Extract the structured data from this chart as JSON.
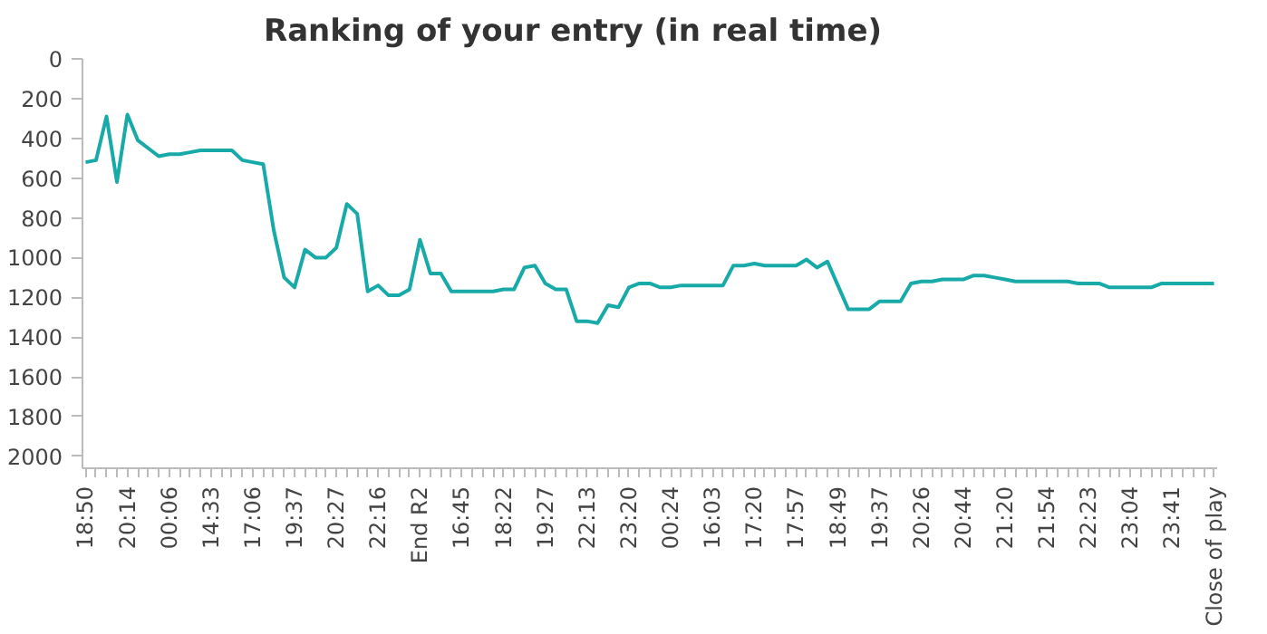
{
  "chart_data": {
    "type": "line",
    "title": "Ranking of your entry (in real time)",
    "categories": [
      "18:50",
      null,
      null,
      null,
      "20:14",
      null,
      null,
      null,
      "00:06",
      null,
      null,
      null,
      "14:33",
      null,
      null,
      null,
      "17:06",
      null,
      null,
      null,
      "19:37",
      null,
      null,
      null,
      "20:27",
      null,
      null,
      null,
      "22:16",
      null,
      null,
      null,
      "End R2",
      null,
      null,
      null,
      "16:45",
      null,
      null,
      null,
      "18:22",
      null,
      null,
      null,
      "19:27",
      null,
      null,
      null,
      "22:13",
      null,
      null,
      null,
      "23:20",
      null,
      null,
      null,
      "00:24",
      null,
      null,
      null,
      "16:03",
      null,
      null,
      null,
      "17:20",
      null,
      null,
      null,
      "17:57",
      null,
      null,
      null,
      "18:49",
      null,
      null,
      null,
      "19:37",
      null,
      null,
      null,
      "20:26",
      null,
      null,
      null,
      "20:44",
      null,
      null,
      null,
      "21:20",
      null,
      null,
      null,
      "21:54",
      null,
      null,
      null,
      "22:23",
      null,
      null,
      null,
      "23:04",
      null,
      null,
      null,
      "23:41",
      null,
      null,
      null,
      "Close of play"
    ],
    "series": [
      {
        "color": "#17aaa8",
        "values": [
          520,
          510,
          290,
          620,
          280,
          410,
          450,
          490,
          480,
          480,
          470,
          460,
          460,
          460,
          460,
          510,
          520,
          530,
          860,
          1100,
          1150,
          960,
          1000,
          1000,
          950,
          730,
          780,
          1170,
          1140,
          1190,
          1190,
          1160,
          910,
          1080,
          1080,
          1170,
          1170,
          1170,
          1170,
          1170,
          1160,
          1160,
          1050,
          1040,
          1130,
          1160,
          1160,
          1320,
          1320,
          1330,
          1240,
          1250,
          1150,
          1130,
          1130,
          1150,
          1150,
          1140,
          1140,
          1140,
          1140,
          1140,
          1040,
          1040,
          1030,
          1040,
          1040,
          1040,
          1040,
          1010,
          1050,
          1020,
          1140,
          1260,
          1260,
          1260,
          1220,
          1220,
          1220,
          1130,
          1120,
          1120,
          1110,
          1110,
          1110,
          1090,
          1090,
          1100,
          1110,
          1120,
          1120,
          1120,
          1120,
          1120,
          1120,
          1130,
          1130,
          1130,
          1150,
          1150,
          1150,
          1150,
          1150,
          1130,
          1130,
          1130,
          1130,
          1130,
          1130
        ]
      }
    ],
    "ylim": [
      2060,
      0
    ],
    "yticks": [
      0,
      200,
      400,
      600,
      800,
      1000,
      1200,
      1400,
      1600,
      1800,
      2000
    ]
  }
}
